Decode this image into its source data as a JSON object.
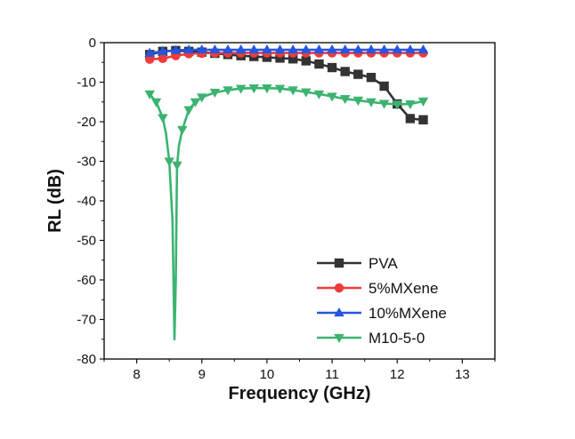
{
  "chart_data": {
    "type": "line",
    "xlabel": "Frequency (GHz)",
    "ylabel": "RL (dB)",
    "xlim": [
      7.5,
      13.5
    ],
    "ylim": [
      -80,
      0
    ],
    "xticks": [
      8,
      9,
      10,
      11,
      12,
      13
    ],
    "yticks": [
      0,
      -10,
      -20,
      -30,
      -40,
      -50,
      -60,
      -70,
      -80
    ],
    "grid": false,
    "legend_position": "bottom-right",
    "series": [
      {
        "name": "PVA",
        "color": "#333333",
        "marker": "square",
        "x": [
          8.2,
          8.4,
          8.6,
          8.8,
          9.0,
          9.2,
          9.4,
          9.6,
          9.8,
          10.0,
          10.2,
          10.4,
          10.6,
          10.8,
          11.0,
          11.2,
          11.4,
          11.6,
          11.8,
          12.0,
          12.2,
          12.4
        ],
        "y": [
          -3.0,
          -2.2,
          -2.0,
          -2.2,
          -2.4,
          -2.7,
          -3.0,
          -3.3,
          -3.5,
          -3.7,
          -3.9,
          -4.1,
          -4.6,
          -5.4,
          -6.3,
          -7.3,
          -8.0,
          -8.8,
          -11.0,
          -15.5,
          -19.2,
          -19.5
        ]
      },
      {
        "name": "5%MXene",
        "color": "#ef3b3b",
        "marker": "circle",
        "x": [
          8.2,
          8.4,
          8.6,
          8.8,
          9.0,
          9.2,
          9.4,
          9.6,
          9.8,
          10.0,
          10.2,
          10.4,
          10.6,
          10.8,
          11.0,
          11.2,
          11.4,
          11.6,
          11.8,
          12.0,
          12.2,
          12.4
        ],
        "y": [
          -4.2,
          -4.0,
          -3.3,
          -2.8,
          -2.7,
          -2.6,
          -2.6,
          -2.6,
          -2.6,
          -2.6,
          -2.6,
          -2.6,
          -2.6,
          -2.6,
          -2.6,
          -2.6,
          -2.6,
          -2.6,
          -2.6,
          -2.6,
          -2.6,
          -2.6
        ]
      },
      {
        "name": "10%MXene",
        "color": "#2456e0",
        "marker": "triangle-up",
        "x": [
          8.2,
          8.4,
          8.6,
          8.8,
          9.0,
          9.2,
          9.4,
          9.6,
          9.8,
          10.0,
          10.2,
          10.4,
          10.6,
          10.8,
          11.0,
          11.2,
          11.4,
          11.6,
          11.8,
          12.0,
          12.2,
          12.4
        ],
        "y": [
          -2.6,
          -2.2,
          -1.9,
          -1.8,
          -1.8,
          -1.8,
          -1.8,
          -1.8,
          -1.8,
          -1.8,
          -1.8,
          -1.8,
          -1.8,
          -1.8,
          -1.8,
          -1.8,
          -1.8,
          -1.8,
          -1.8,
          -1.8,
          -1.8,
          -1.8
        ]
      },
      {
        "name": "M10-5-0",
        "color": "#3cb371",
        "marker": "triangle-down",
        "x": [
          8.2,
          8.3,
          8.4,
          8.45,
          8.5,
          8.55,
          8.58,
          8.6,
          8.62,
          8.65,
          8.7,
          8.8,
          8.9,
          9.0,
          9.2,
          9.4,
          9.6,
          9.8,
          10.0,
          10.2,
          10.4,
          10.6,
          10.8,
          11.0,
          11.2,
          11.4,
          11.6,
          11.8,
          12.0,
          12.2,
          12.4
        ],
        "y": [
          -13.0,
          -15.0,
          -19.0,
          -23.0,
          -30.0,
          -45.0,
          -75.0,
          -60.0,
          -31.0,
          -26.0,
          -22.0,
          -17.0,
          -15.0,
          -13.8,
          -12.6,
          -12.0,
          -11.6,
          -11.5,
          -11.5,
          -11.6,
          -12.0,
          -12.5,
          -13.0,
          -13.6,
          -14.2,
          -14.6,
          -15.0,
          -15.4,
          -15.6,
          -15.5,
          -14.8
        ]
      }
    ]
  }
}
